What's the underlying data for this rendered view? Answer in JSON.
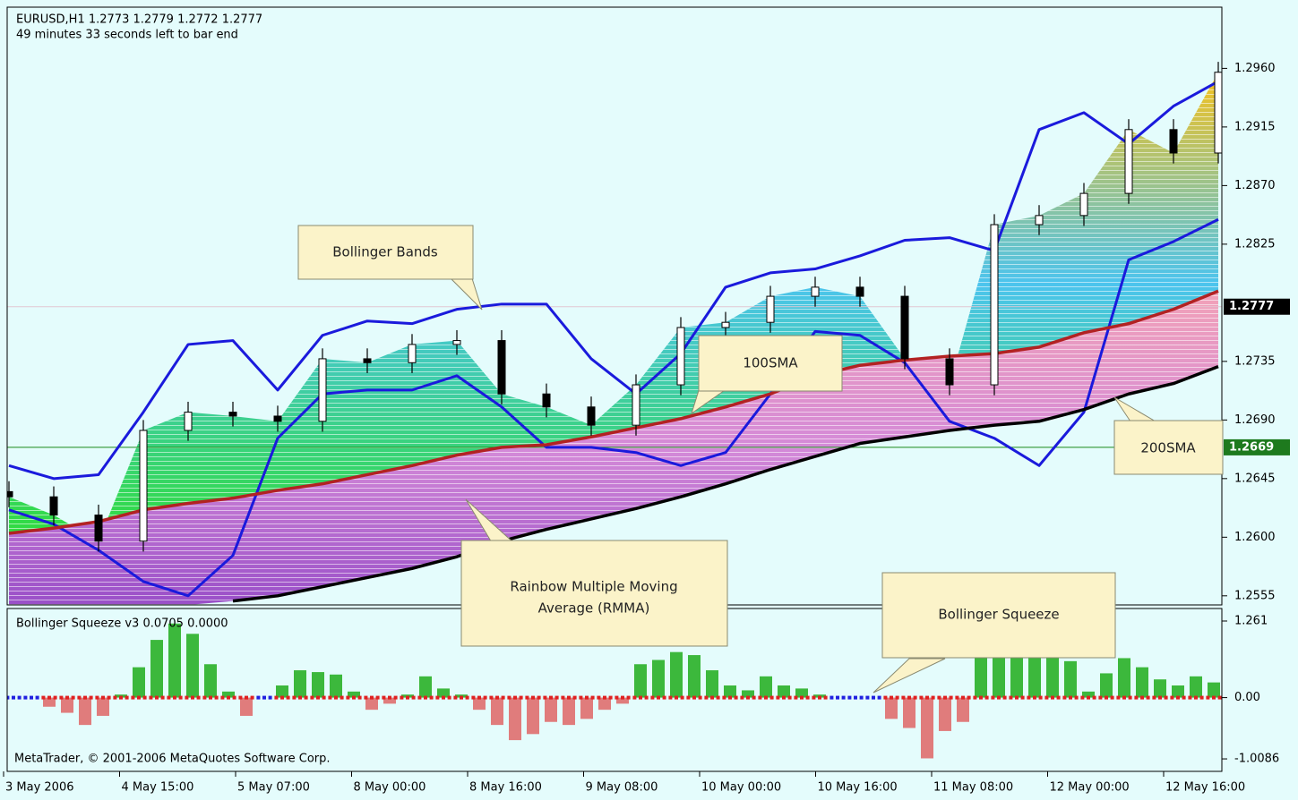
{
  "chart_data": [
    {
      "type": "candlestick",
      "title": "EURUSD,H1  1.2773 1.2779 1.2772 1.2777",
      "subtitle": "49 minutes 33 seconds left to bar end",
      "x_labels": [
        "3 May 2006",
        "4 May 15:00",
        "5 May 07:00",
        "8 May 00:00",
        "8 May 16:00",
        "9 May 08:00",
        "10 May 00:00",
        "10 May 16:00",
        "11 May 08:00",
        "12 May 00:00",
        "12 May 16:00"
      ],
      "open": [
        1.2635,
        1.2631,
        1.2617,
        1.2597,
        1.2682,
        1.2696,
        1.2693,
        1.2689,
        1.2737,
        1.2734,
        1.2748,
        1.2751,
        1.271,
        1.27,
        1.2686,
        1.2717,
        1.2761,
        1.2765,
        1.2785,
        1.2792,
        1.2785,
        1.2737,
        1.2717,
        1.284,
        1.2847,
        1.2864,
        1.2913,
        1.2895
      ],
      "high": [
        1.2643,
        1.2639,
        1.2625,
        1.269,
        1.2704,
        1.2704,
        1.2701,
        1.2745,
        1.2745,
        1.2756,
        1.2759,
        1.2759,
        1.2718,
        1.2708,
        1.2725,
        1.2769,
        1.2773,
        1.2793,
        1.28,
        1.28,
        1.2793,
        1.2745,
        1.2848,
        1.2855,
        1.2872,
        1.2921,
        1.2921,
        1.2965
      ],
      "low": [
        1.2623,
        1.2609,
        1.2589,
        1.2589,
        1.2674,
        1.2685,
        1.2681,
        1.2681,
        1.2726,
        1.2726,
        1.274,
        1.2702,
        1.2692,
        1.2678,
        1.2678,
        1.2709,
        1.2753,
        1.2757,
        1.2777,
        1.2777,
        1.2729,
        1.2709,
        1.2709,
        1.2832,
        1.2839,
        1.2856,
        1.2887,
        1.2887
      ],
      "close": [
        1.2631,
        1.2617,
        1.2597,
        1.2682,
        1.2696,
        1.2693,
        1.2689,
        1.2737,
        1.2734,
        1.2748,
        1.2751,
        1.271,
        1.27,
        1.2686,
        1.2717,
        1.2761,
        1.2765,
        1.2785,
        1.2792,
        1.2785,
        1.2737,
        1.2717,
        1.284,
        1.2847,
        1.2864,
        1.2913,
        1.2895,
        1.2957
      ],
      "series": [
        {
          "color": "#1a1adc",
          "values": [
            1.2655,
            1.2645,
            1.2648,
            1.2696,
            1.2748,
            1.2751,
            1.2713,
            1.2755,
            1.2766,
            1.2764,
            1.2775,
            1.2779,
            1.2779,
            1.2737,
            1.271,
            1.2741,
            1.2792,
            1.2803,
            1.2806,
            1.2816,
            1.2828,
            1.283,
            1.282,
            1.2913,
            1.2926,
            1.2902,
            1.2931,
            1.295
          ]
        },
        {
          "color": "#1a1adc",
          "values": [
            1.2621,
            1.261,
            1.259,
            1.2566,
            1.2555,
            1.2586,
            1.2676,
            1.271,
            1.2713,
            1.2713,
            1.2724,
            1.27,
            1.2669,
            1.2669,
            1.2665,
            1.2655,
            1.2665,
            1.271,
            1.2758,
            1.2755,
            1.2734,
            1.2689,
            1.2676,
            1.2655,
            1.2696,
            1.2813,
            1.2827,
            1.2844
          ]
        },
        {
          "color": "#b22222",
          "values": [
            1.2603,
            1.2607,
            1.2612,
            1.2621,
            1.2626,
            1.263,
            1.2636,
            1.2641,
            1.2648,
            1.2655,
            1.2663,
            1.2669,
            1.2671,
            1.2677,
            1.2684,
            1.2691,
            1.27,
            1.271,
            1.2724,
            1.2732,
            1.2736,
            1.2739,
            1.2741,
            1.2746,
            1.2757,
            1.2764,
            1.2775,
            1.2789
          ]
        },
        {
          "color": "#000000",
          "values": [
            null,
            null,
            null,
            null,
            null,
            1.2551,
            1.2555,
            1.2562,
            1.2569,
            1.2576,
            1.2585,
            1.2597,
            1.2606,
            1.2614,
            1.2622,
            1.2631,
            1.2641,
            1.2652,
            1.2662,
            1.2672,
            1.2677,
            1.2682,
            1.2686,
            1.2689,
            1.2698,
            1.271,
            1.2718,
            1.2731
          ]
        }
      ],
      "price_lines": [
        {
          "value": 1.2777,
          "color": "#e2c6d2",
          "label_color": "#000000"
        },
        {
          "value": 1.2669,
          "color": "#1a8a1a",
          "label_color": "#1e7a1e"
        }
      ],
      "annotations": [
        [
          "Bollinger Bands"
        ],
        [
          "100SMA"
        ],
        [
          "Rainbow Multiple Moving",
          "Average (RMMA)"
        ],
        [
          "Bollinger Squeeze"
        ],
        [
          "200SMA"
        ]
      ],
      "ylim": [
        1.2548,
        1.3007
      ],
      "yticks": [
        {
          "value": 1.2555,
          "label": "1.2555"
        },
        {
          "value": 1.26,
          "label": "1.2600"
        },
        1.2645,
        {
          "value": 1.269,
          "label": "1.2690"
        },
        1.2735,
        1.2825,
        {
          "value": 1.287,
          "label": "1.2870"
        },
        1.2915,
        {
          "value": 1.296,
          "label": "1.2960"
        }
      ]
    },
    {
      "type": "bar",
      "title": "Bollinger Squeeze v3 0.0705 0.0000",
      "footer": "MetaTrader, © 2001-2006 MetaQuotes Software Corp.",
      "values": [
        0,
        0,
        -0.15,
        -0.25,
        -0.45,
        -0.3,
        0.05,
        0.5,
        0.95,
        1.22,
        1.05,
        0.55,
        0.1,
        -0.3,
        0,
        0.2,
        0.45,
        0.42,
        0.38,
        0.1,
        -0.2,
        -0.1,
        0.05,
        0.35,
        0.15,
        0.05,
        -0.2,
        -0.45,
        -0.7,
        -0.6,
        -0.4,
        -0.45,
        -0.35,
        -0.2,
        -0.1,
        0.55,
        0.62,
        0.75,
        0.7,
        0.45,
        0.2,
        0.12,
        0.35,
        0.2,
        0.15,
        0.05,
        0,
        0,
        0,
        -0.35,
        -0.5,
        -1.0,
        -0.55,
        -0.4,
        0.85,
        0.9,
        0.92,
        0.9,
        0.88,
        0.6,
        0.1,
        0.4,
        0.65,
        0.5,
        0.3,
        0.2,
        0.35,
        0.25
      ],
      "squeeze": [
        true,
        true,
        false,
        false,
        false,
        false,
        false,
        false,
        false,
        false,
        false,
        false,
        false,
        false,
        true,
        false,
        false,
        false,
        false,
        false,
        false,
        false,
        false,
        false,
        false,
        false,
        false,
        false,
        false,
        false,
        false,
        false,
        false,
        false,
        false,
        false,
        false,
        false,
        false,
        false,
        false,
        false,
        false,
        false,
        false,
        false,
        true,
        true,
        true,
        false,
        false,
        false,
        false,
        false,
        false,
        false,
        false,
        false,
        false,
        false,
        false,
        false,
        false,
        false,
        false,
        false,
        false,
        false
      ],
      "positive_color": "#3cb83c",
      "negative_color": "#e07c7c",
      "squeeze_color": "#2020e0",
      "normal_color": "#e02020",
      "ylim": [
        -1.214,
        1.467
      ],
      "yticks": [
        -1.0086,
        {
          "value": 0,
          "label": "0.00"
        },
        1.261
      ]
    }
  ]
}
